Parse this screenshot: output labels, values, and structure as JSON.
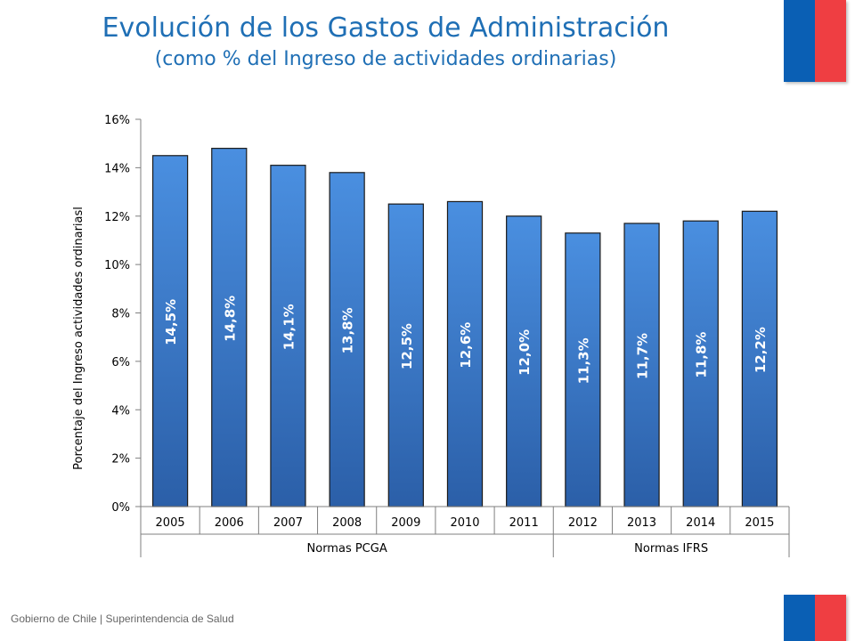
{
  "header": {
    "title": "Evolución de los Gastos de Administración",
    "subtitle": "(como % del Ingreso de actividades ordinarias)"
  },
  "footer": {
    "text": "Gobierno de Chile | Superintendencia de Salud"
  },
  "colors": {
    "title": "#1f6fb5",
    "bar": "#3b7fd0",
    "flag_blue": "#0a5fb4",
    "flag_red": "#ef3e42"
  },
  "chart_data": {
    "type": "bar",
    "title": "",
    "xlabel": "",
    "ylabel": "Porcentaje del Ingreso actividades ordinariasl",
    "categories": [
      "2005",
      "2006",
      "2007",
      "2008",
      "2009",
      "2010",
      "2011",
      "2012",
      "2013",
      "2014",
      "2015"
    ],
    "values": [
      14.5,
      14.8,
      14.1,
      13.8,
      12.5,
      12.6,
      12.0,
      11.3,
      11.7,
      11.8,
      12.2
    ],
    "data_labels": [
      "14,5%",
      "14,8%",
      "14,1%",
      "13,8%",
      "12,5%",
      "12,6%",
      "12,0%",
      "11,3%",
      "11,7%",
      "11,8%",
      "12,2%"
    ],
    "ylim": [
      0,
      16
    ],
    "yticks": [
      "0%",
      "2%",
      "4%",
      "6%",
      "8%",
      "10%",
      "12%",
      "14%",
      "16%"
    ],
    "groups": [
      {
        "label": "Normas PCGA",
        "count": 7
      },
      {
        "label": "Normas IFRS",
        "count": 4
      }
    ],
    "grid": false,
    "legend": "none"
  }
}
